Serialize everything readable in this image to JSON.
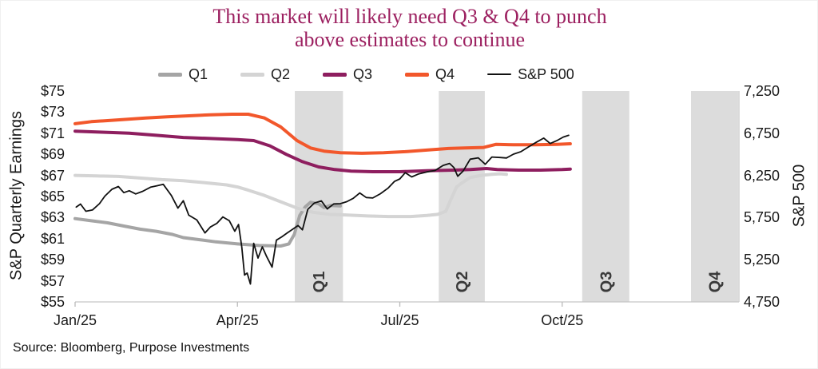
{
  "title": {
    "line1": "This market will likely need Q3 & Q4 to punch",
    "line2": "above estimates to continue"
  },
  "source": "Source: Bloomberg, Purpose Investments",
  "left_axis": {
    "title": "S&P Quarterly Earnings"
  },
  "right_axis": {
    "title": "S&P 500"
  },
  "colors": {
    "title": "#9C2060",
    "q1": "#A5A5A5",
    "q2": "#D4D4D4",
    "q3": "#8E1E5F",
    "q4": "#F2572B",
    "sp500": "#111111",
    "band": "#DCDCDC",
    "band_label": "#3A3A3A",
    "axis": "#C6C6C6",
    "tick_mark": "#B9B9B9"
  },
  "legend": [
    {
      "label": "Q1",
      "color": "#A5A5A5",
      "thickness": 5
    },
    {
      "label": "Q2",
      "color": "#D4D4D4",
      "thickness": 5
    },
    {
      "label": "Q3",
      "color": "#8E1E5F",
      "thickness": 5
    },
    {
      "label": "Q4",
      "color": "#F2572B",
      "thickness": 5
    },
    {
      "label": "S&P 500",
      "color": "#111111",
      "thickness": 2
    }
  ],
  "chart_data": {
    "type": "line",
    "title": "This market will likely need Q3 & Q4 to punch above estimates to continue",
    "xlabel": "",
    "ylabel_left": "S&P Quarterly Earnings",
    "ylabel_right": "S&P 500",
    "x_unit": "months since Jan 2025",
    "left_ylim": [
      55,
      75
    ],
    "right_ylim": [
      4750,
      7250
    ],
    "grid": false,
    "legend_position": "top",
    "left_ticks": [
      {
        "v": 75,
        "label": "$75"
      },
      {
        "v": 73,
        "label": "$73"
      },
      {
        "v": 71,
        "label": "$71"
      },
      {
        "v": 69,
        "label": "$69"
      },
      {
        "v": 67,
        "label": "$67"
      },
      {
        "v": 65,
        "label": "$65"
      },
      {
        "v": 63,
        "label": "$63"
      },
      {
        "v": 61,
        "label": "$61"
      },
      {
        "v": 59,
        "label": "$59"
      },
      {
        "v": 57,
        "label": "$57"
      },
      {
        "v": 55,
        "label": "$55"
      }
    ],
    "right_ticks": [
      {
        "v": 7250,
        "label": "7,250"
      },
      {
        "v": 6750,
        "label": "6,750"
      },
      {
        "v": 6250,
        "label": "6,250"
      },
      {
        "v": 5750,
        "label": "5,750"
      },
      {
        "v": 5250,
        "label": "5,250"
      },
      {
        "v": 4750,
        "label": "4,750"
      }
    ],
    "x_ticks": [
      {
        "m": 0,
        "label": "Jan/25"
      },
      {
        "m": 3,
        "label": "Apr/25"
      },
      {
        "m": 6,
        "label": "Jul/25"
      },
      {
        "m": 9,
        "label": "Oct/25"
      }
    ],
    "bands": [
      {
        "label": "Q1",
        "from_m": 4.06,
        "to_m": 4.95
      },
      {
        "label": "Q2",
        "from_m": 6.72,
        "to_m": 7.57
      },
      {
        "label": "Q3",
        "from_m": 9.37,
        "to_m": 10.24
      },
      {
        "label": "Q4",
        "from_m": 11.38,
        "to_m": 12.25
      }
    ],
    "series": [
      {
        "name": "Q1",
        "axis": "left",
        "color": "#A5A5A5",
        "line_width": 4,
        "points": [
          [
            0,
            62.9
          ],
          [
            0.3,
            62.7
          ],
          [
            0.6,
            62.5
          ],
          [
            0.9,
            62.2
          ],
          [
            1.2,
            61.9
          ],
          [
            1.5,
            61.7
          ],
          [
            1.8,
            61.4
          ],
          [
            2.0,
            61.1
          ],
          [
            2.3,
            60.9
          ],
          [
            2.6,
            60.7
          ],
          [
            3.0,
            60.5
          ],
          [
            3.4,
            60.35
          ],
          [
            3.8,
            60.3
          ],
          [
            3.95,
            60.5
          ],
          [
            4.05,
            61.4
          ],
          [
            4.15,
            63.2
          ],
          [
            4.25,
            64.0
          ],
          [
            4.35,
            64.45
          ],
          [
            4.5,
            64.3
          ],
          [
            4.6,
            63.95
          ],
          [
            4.72,
            64.15
          ],
          [
            4.9,
            64.1
          ]
        ]
      },
      {
        "name": "Q2",
        "axis": "left",
        "color": "#D4D4D4",
        "line_width": 4,
        "points": [
          [
            0,
            67.0
          ],
          [
            0.4,
            66.95
          ],
          [
            0.8,
            66.9
          ],
          [
            1.2,
            66.75
          ],
          [
            1.6,
            66.6
          ],
          [
            2.0,
            66.5
          ],
          [
            2.4,
            66.3
          ],
          [
            2.8,
            66.1
          ],
          [
            3.0,
            65.9
          ],
          [
            3.2,
            65.6
          ],
          [
            3.5,
            65.1
          ],
          [
            3.8,
            64.5
          ],
          [
            4.1,
            63.9
          ],
          [
            4.4,
            63.5
          ],
          [
            4.7,
            63.3
          ],
          [
            5.0,
            63.25
          ],
          [
            5.4,
            63.15
          ],
          [
            5.8,
            63.1
          ],
          [
            6.2,
            63.1
          ],
          [
            6.5,
            63.2
          ],
          [
            6.7,
            63.3
          ],
          [
            6.85,
            63.6
          ],
          [
            6.95,
            64.8
          ],
          [
            7.05,
            65.9
          ],
          [
            7.15,
            66.3
          ],
          [
            7.3,
            66.8
          ],
          [
            7.5,
            67.0
          ],
          [
            7.7,
            67.1
          ],
          [
            7.85,
            67.15
          ],
          [
            7.97,
            67.1
          ]
        ]
      },
      {
        "name": "Q3",
        "axis": "left",
        "color": "#8E1E5F",
        "line_width": 4,
        "points": [
          [
            0,
            71.2
          ],
          [
            0.5,
            71.1
          ],
          [
            1.0,
            71.0
          ],
          [
            1.5,
            70.8
          ],
          [
            2.0,
            70.6
          ],
          [
            2.5,
            70.5
          ],
          [
            3.0,
            70.4
          ],
          [
            3.3,
            70.3
          ],
          [
            3.6,
            69.8
          ],
          [
            3.9,
            69.0
          ],
          [
            4.2,
            68.3
          ],
          [
            4.5,
            67.8
          ],
          [
            4.8,
            67.55
          ],
          [
            5.1,
            67.4
          ],
          [
            5.5,
            67.35
          ],
          [
            6.0,
            67.35
          ],
          [
            6.5,
            67.45
          ],
          [
            7.0,
            67.5
          ],
          [
            7.3,
            67.55
          ],
          [
            7.6,
            67.65
          ],
          [
            7.8,
            67.55
          ],
          [
            8.2,
            67.5
          ],
          [
            8.6,
            67.5
          ],
          [
            9.0,
            67.55
          ],
          [
            9.15,
            67.6
          ]
        ]
      },
      {
        "name": "Q4",
        "axis": "left",
        "color": "#F2572B",
        "line_width": 4,
        "points": [
          [
            0,
            71.9
          ],
          [
            0.3,
            72.1
          ],
          [
            0.6,
            72.2
          ],
          [
            0.9,
            72.3
          ],
          [
            1.3,
            72.45
          ],
          [
            1.7,
            72.55
          ],
          [
            2.1,
            72.65
          ],
          [
            2.5,
            72.75
          ],
          [
            2.9,
            72.8
          ],
          [
            3.2,
            72.8
          ],
          [
            3.5,
            72.45
          ],
          [
            3.8,
            71.6
          ],
          [
            4.1,
            70.3
          ],
          [
            4.35,
            69.6
          ],
          [
            4.6,
            69.3
          ],
          [
            4.9,
            69.15
          ],
          [
            5.3,
            69.1
          ],
          [
            5.7,
            69.15
          ],
          [
            6.1,
            69.25
          ],
          [
            6.5,
            69.4
          ],
          [
            6.9,
            69.55
          ],
          [
            7.2,
            69.6
          ],
          [
            7.55,
            69.65
          ],
          [
            7.78,
            69.95
          ],
          [
            8.1,
            69.9
          ],
          [
            8.5,
            69.9
          ],
          [
            8.9,
            69.95
          ],
          [
            9.15,
            70.0
          ]
        ]
      },
      {
        "name": "S&P 500",
        "axis": "right",
        "color": "#111111",
        "line_width": 1.8,
        "points": [
          [
            0.02,
            5875
          ],
          [
            0.1,
            5910
          ],
          [
            0.2,
            5825
          ],
          [
            0.32,
            5840
          ],
          [
            0.45,
            5915
          ],
          [
            0.55,
            6005
          ],
          [
            0.68,
            6085
          ],
          [
            0.8,
            6118
          ],
          [
            0.9,
            6045
          ],
          [
            1.0,
            6068
          ],
          [
            1.12,
            6030
          ],
          [
            1.25,
            6062
          ],
          [
            1.4,
            6112
          ],
          [
            1.52,
            6128
          ],
          [
            1.63,
            6144
          ],
          [
            1.78,
            6010
          ],
          [
            1.9,
            5862
          ],
          [
            2.0,
            5950
          ],
          [
            2.1,
            5778
          ],
          [
            2.25,
            5722
          ],
          [
            2.4,
            5568
          ],
          [
            2.5,
            5638
          ],
          [
            2.62,
            5682
          ],
          [
            2.73,
            5758
          ],
          [
            2.85,
            5712
          ],
          [
            2.95,
            5588
          ],
          [
            3.02,
            5668
          ],
          [
            3.08,
            5400
          ],
          [
            3.13,
            5068
          ],
          [
            3.18,
            5092
          ],
          [
            3.24,
            4962
          ],
          [
            3.3,
            5445
          ],
          [
            3.38,
            5270
          ],
          [
            3.46,
            5402
          ],
          [
            3.54,
            5288
          ],
          [
            3.64,
            5162
          ],
          [
            3.72,
            5482
          ],
          [
            3.82,
            5522
          ],
          [
            3.92,
            5568
          ],
          [
            4.02,
            5612
          ],
          [
            4.12,
            5655
          ],
          [
            4.2,
            5605
          ],
          [
            4.3,
            5848
          ],
          [
            4.42,
            5922
          ],
          [
            4.55,
            5948
          ],
          [
            4.66,
            5852
          ],
          [
            4.78,
            5912
          ],
          [
            4.9,
            5915
          ],
          [
            5.02,
            5938
          ],
          [
            5.14,
            5978
          ],
          [
            5.26,
            6042
          ],
          [
            5.38,
            5988
          ],
          [
            5.5,
            5982
          ],
          [
            5.64,
            6032
          ],
          [
            5.78,
            6098
          ],
          [
            5.9,
            6178
          ],
          [
            6.0,
            6208
          ],
          [
            6.1,
            6282
          ],
          [
            6.22,
            6232
          ],
          [
            6.35,
            6268
          ],
          [
            6.5,
            6292
          ],
          [
            6.65,
            6308
          ],
          [
            6.8,
            6368
          ],
          [
            6.92,
            6392
          ],
          [
            7.0,
            6342
          ],
          [
            7.07,
            6240
          ],
          [
            7.17,
            6302
          ],
          [
            7.3,
            6442
          ],
          [
            7.45,
            6458
          ],
          [
            7.58,
            6382
          ],
          [
            7.7,
            6468
          ],
          [
            7.85,
            6462
          ],
          [
            7.97,
            6456
          ],
          [
            8.1,
            6502
          ],
          [
            8.24,
            6532
          ],
          [
            8.38,
            6588
          ],
          [
            8.52,
            6642
          ],
          [
            8.66,
            6692
          ],
          [
            8.78,
            6628
          ],
          [
            8.9,
            6662
          ],
          [
            9.02,
            6705
          ],
          [
            9.12,
            6725
          ]
        ]
      }
    ]
  }
}
